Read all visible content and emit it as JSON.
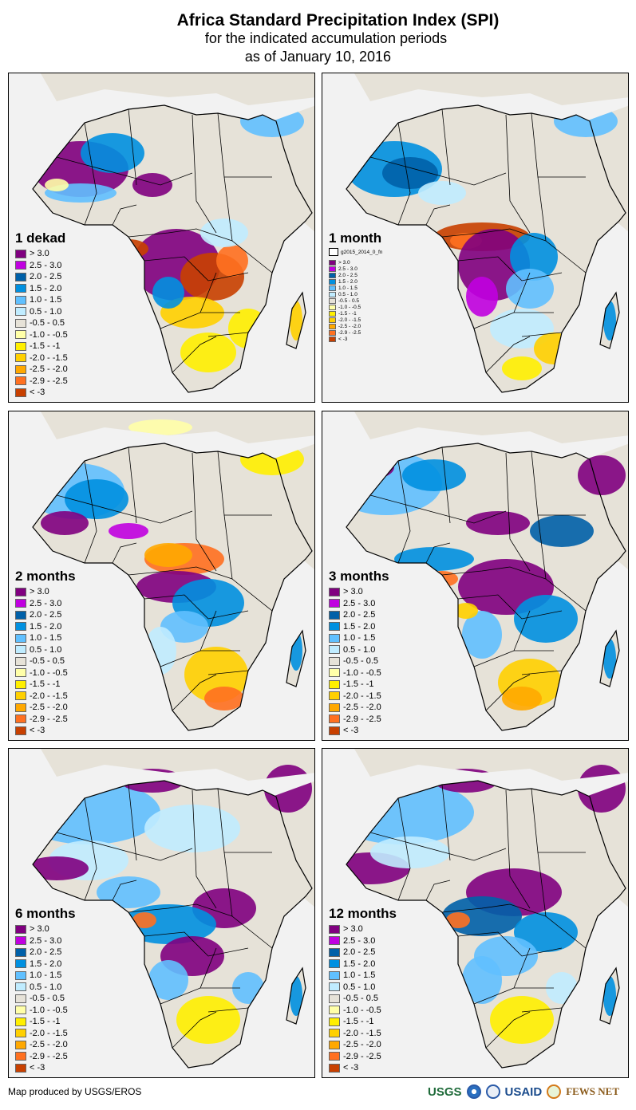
{
  "header": {
    "title": "Africa Standard Precipitation Index (SPI)",
    "subtitle": "for the indicated accumulation periods",
    "date_line": "as of January 10, 2016"
  },
  "legend_classes": [
    {
      "label": "> 3.0",
      "color": "#800080"
    },
    {
      "label": "2.5 - 3.0",
      "color": "#c000e0"
    },
    {
      "label": "2.0 - 2.5",
      "color": "#0060a8"
    },
    {
      "label": "1.5 - 2.0",
      "color": "#0090e0"
    },
    {
      "label": "1.0 - 1.5",
      "color": "#60c0ff"
    },
    {
      "label": "0.5 - 1.0",
      "color": "#c0ecff"
    },
    {
      "label": "-0.5 - 0.5",
      "color": "#e6e2d8"
    },
    {
      "label": "-1.0 - -0.5",
      "color": "#ffffa8"
    },
    {
      "label": "-1.5 - -1",
      "color": "#ffef00"
    },
    {
      "label": "-2.0 - -1.5",
      "color": "#ffd000"
    },
    {
      "label": "-2.5 - -2.0",
      "color": "#ffa800"
    },
    {
      "label": "-2.9 - -2.5",
      "color": "#ff7020"
    },
    {
      "label": "< -3",
      "color": "#c84000"
    }
  ],
  "panels": [
    {
      "id": "1-dekad",
      "title": "1 dekad",
      "layer_label": null
    },
    {
      "id": "1-month",
      "title": "1 month",
      "layer_label": "g2015_2014_0_fn"
    },
    {
      "id": "2-months",
      "title": "2 months",
      "layer_label": null
    },
    {
      "id": "3-months",
      "title": "3 months",
      "layer_label": null
    },
    {
      "id": "6-months",
      "title": "6 months",
      "layer_label": null
    },
    {
      "id": "12-months",
      "title": "12 months",
      "layer_label": null
    }
  ],
  "footer": {
    "credit": "Map produced by USGS/EROS",
    "logos": [
      "USGS",
      "NOAA",
      "USAID seal",
      "USAID",
      "FEWS NET"
    ],
    "usgs_label": "USGS",
    "usaid_label": "USAID",
    "fews_label": "FEWS NET"
  }
}
